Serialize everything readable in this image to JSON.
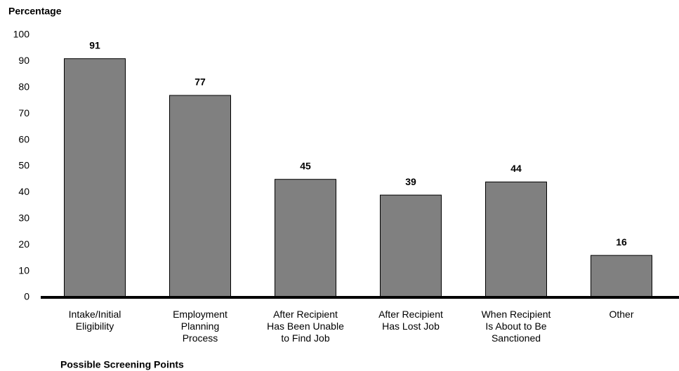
{
  "chart_data": {
    "type": "bar",
    "ylabel": "Percentage",
    "xlabel": "Possible Screening Points",
    "categories": [
      [
        "Intake/Initial",
        "Eligibility"
      ],
      [
        "Employment",
        "Planning",
        "Process"
      ],
      [
        "After Recipient",
        "Has Been Unable",
        "to Find Job"
      ],
      [
        "After Recipient",
        "Has Lost Job"
      ],
      [
        "When Recipient",
        "Is About to Be",
        "Sanctioned"
      ],
      [
        "Other"
      ]
    ],
    "values": [
      91,
      77,
      45,
      39,
      44,
      16
    ],
    "color": "#808080",
    "ylim": [
      0,
      100
    ],
    "yticks": [
      0,
      10,
      20,
      30,
      40,
      50,
      60,
      70,
      80,
      90,
      100
    ],
    "grid": false
  }
}
